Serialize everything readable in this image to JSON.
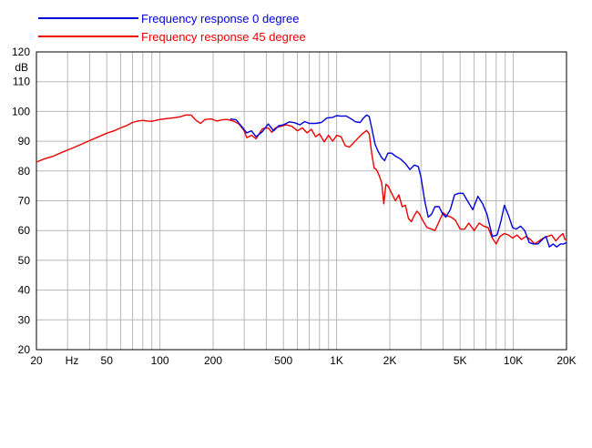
{
  "chart_data": {
    "type": "line",
    "title": "",
    "xlabel": "",
    "ylabel": "dB",
    "x_unit_label": "Hz",
    "xscale": "log",
    "xlim": [
      20,
      20000
    ],
    "ylim": [
      20,
      120
    ],
    "grid": true,
    "legend_position": "top-left",
    "x_tick_labels": [
      {
        "value": 20,
        "label": "20"
      },
      {
        "value": 50,
        "label": "50"
      },
      {
        "value": 100,
        "label": "100"
      },
      {
        "value": 200,
        "label": "200"
      },
      {
        "value": 500,
        "label": "500"
      },
      {
        "value": 1000,
        "label": "1K"
      },
      {
        "value": 2000,
        "label": "2K"
      },
      {
        "value": 5000,
        "label": "5K"
      },
      {
        "value": 10000,
        "label": "10K"
      },
      {
        "value": 20000,
        "label": "20K"
      }
    ],
    "y_ticks": [
      20,
      30,
      40,
      50,
      60,
      70,
      80,
      90,
      100,
      110,
      120
    ],
    "series": [
      {
        "name": "Frequency response 0 degree",
        "color": "#0000dd",
        "points": [
          [
            250,
            97.5
          ],
          [
            270,
            97.2
          ],
          [
            290,
            95
          ],
          [
            310,
            92.8
          ],
          [
            330,
            93.5
          ],
          [
            350,
            91.5
          ],
          [
            380,
            93.2
          ],
          [
            410,
            95.8
          ],
          [
            440,
            93.5
          ],
          [
            470,
            95.2
          ],
          [
            500,
            95.5
          ],
          [
            540,
            96.5
          ],
          [
            580,
            96.2
          ],
          [
            620,
            95.5
          ],
          [
            660,
            96.6
          ],
          [
            700,
            96.0
          ],
          [
            760,
            96.0
          ],
          [
            820,
            96.3
          ],
          [
            880,
            97.8
          ],
          [
            950,
            98.0
          ],
          [
            1000,
            98.6
          ],
          [
            1070,
            98.4
          ],
          [
            1130,
            98.5
          ],
          [
            1200,
            97.6
          ],
          [
            1280,
            96.5
          ],
          [
            1360,
            96.3
          ],
          [
            1420,
            97.8
          ],
          [
            1480,
            98.8
          ],
          [
            1530,
            98.3
          ],
          [
            1580,
            94.5
          ],
          [
            1650,
            89
          ],
          [
            1720,
            86.5
          ],
          [
            1800,
            84.5
          ],
          [
            1870,
            83.5
          ],
          [
            1950,
            86
          ],
          [
            2050,
            86
          ],
          [
            2150,
            85
          ],
          [
            2300,
            84
          ],
          [
            2450,
            82.5
          ],
          [
            2600,
            80.5
          ],
          [
            2750,
            82
          ],
          [
            2900,
            81.5
          ],
          [
            3000,
            78
          ],
          [
            3150,
            70
          ],
          [
            3300,
            64.5
          ],
          [
            3450,
            65.5
          ],
          [
            3600,
            68
          ],
          [
            3800,
            68
          ],
          [
            3950,
            66
          ],
          [
            4150,
            64.5
          ],
          [
            4400,
            67
          ],
          [
            4650,
            72
          ],
          [
            4900,
            72.5
          ],
          [
            5200,
            72.5
          ],
          [
            5500,
            70
          ],
          [
            5900,
            67
          ],
          [
            6300,
            71.5
          ],
          [
            6700,
            69
          ],
          [
            7100,
            65.5
          ],
          [
            7600,
            58
          ],
          [
            8100,
            58.5
          ],
          [
            8500,
            63
          ],
          [
            8900,
            68.5
          ],
          [
            9400,
            65
          ],
          [
            9900,
            61
          ],
          [
            10400,
            60.5
          ],
          [
            11000,
            61.5
          ],
          [
            11600,
            60
          ],
          [
            12300,
            56
          ],
          [
            13000,
            55.5
          ],
          [
            13800,
            55.5
          ],
          [
            14600,
            57
          ],
          [
            15300,
            58
          ],
          [
            16000,
            54.5
          ],
          [
            16800,
            55.5
          ],
          [
            17600,
            54.5
          ],
          [
            18500,
            55.5
          ],
          [
            19300,
            55.5
          ],
          [
            20000,
            56
          ]
        ]
      },
      {
        "name": "Frequency response 45 degree",
        "color": "#ee0000",
        "points": [
          [
            20,
            83
          ],
          [
            22,
            84
          ],
          [
            25,
            85
          ],
          [
            28,
            86.3
          ],
          [
            32,
            87.7
          ],
          [
            36,
            89
          ],
          [
            40,
            90.2
          ],
          [
            45,
            91.5
          ],
          [
            50,
            92.7
          ],
          [
            55,
            93.5
          ],
          [
            60,
            94.5
          ],
          [
            65,
            95.3
          ],
          [
            70,
            96.3
          ],
          [
            75,
            96.8
          ],
          [
            80,
            97.0
          ],
          [
            85,
            96.8
          ],
          [
            90,
            96.7
          ],
          [
            95,
            97.0
          ],
          [
            100,
            97.3
          ],
          [
            110,
            97.6
          ],
          [
            120,
            97.9
          ],
          [
            130,
            98.2
          ],
          [
            140,
            98.8
          ],
          [
            150,
            98.8
          ],
          [
            160,
            97.0
          ],
          [
            170,
            96.0
          ],
          [
            180,
            97.3
          ],
          [
            195,
            97.5
          ],
          [
            210,
            96.8
          ],
          [
            225,
            97.2
          ],
          [
            240,
            97.3
          ],
          [
            260,
            96.8
          ],
          [
            280,
            95.8
          ],
          [
            300,
            93.5
          ],
          [
            310,
            91.2
          ],
          [
            330,
            92.0
          ],
          [
            350,
            90.8
          ],
          [
            380,
            94.2
          ],
          [
            410,
            94.5
          ],
          [
            430,
            93.0
          ],
          [
            450,
            94.5
          ],
          [
            480,
            95.0
          ],
          [
            520,
            95.5
          ],
          [
            560,
            95.0
          ],
          [
            600,
            93.5
          ],
          [
            640,
            94.5
          ],
          [
            680,
            92.8
          ],
          [
            720,
            94.0
          ],
          [
            760,
            91.5
          ],
          [
            800,
            92.5
          ],
          [
            850,
            89.8
          ],
          [
            900,
            92.0
          ],
          [
            950,
            90.0
          ],
          [
            1000,
            92.0
          ],
          [
            1060,
            91.5
          ],
          [
            1120,
            88.5
          ],
          [
            1180,
            88.0
          ],
          [
            1250,
            89.5
          ],
          [
            1320,
            91.0
          ],
          [
            1400,
            92.5
          ],
          [
            1480,
            93.6
          ],
          [
            1530,
            92.5
          ],
          [
            1580,
            86
          ],
          [
            1630,
            81
          ],
          [
            1680,
            80.5
          ],
          [
            1740,
            78.5
          ],
          [
            1800,
            76
          ],
          [
            1850,
            69
          ],
          [
            1900,
            75.5
          ],
          [
            1950,
            75
          ],
          [
            2050,
            72.5
          ],
          [
            2150,
            70
          ],
          [
            2250,
            72
          ],
          [
            2350,
            68
          ],
          [
            2450,
            68.5
          ],
          [
            2550,
            64
          ],
          [
            2650,
            63
          ],
          [
            2750,
            65
          ],
          [
            2850,
            66.5
          ],
          [
            2950,
            65.5
          ],
          [
            3100,
            63
          ],
          [
            3250,
            61
          ],
          [
            3450,
            60.5
          ],
          [
            3600,
            60
          ],
          [
            3800,
            63
          ],
          [
            4000,
            66
          ],
          [
            4200,
            65
          ],
          [
            4450,
            64.5
          ],
          [
            4700,
            63.5
          ],
          [
            5000,
            60.5
          ],
          [
            5300,
            60.5
          ],
          [
            5600,
            62.5
          ],
          [
            6000,
            60
          ],
          [
            6400,
            62.5
          ],
          [
            6800,
            61.5
          ],
          [
            7200,
            61
          ],
          [
            7600,
            57.5
          ],
          [
            8000,
            55.5
          ],
          [
            8400,
            58
          ],
          [
            8900,
            59
          ],
          [
            9400,
            58.5
          ],
          [
            9900,
            57.5
          ],
          [
            10500,
            58.5
          ],
          [
            11100,
            57
          ],
          [
            11800,
            58
          ],
          [
            12500,
            57
          ],
          [
            13200,
            55.5
          ],
          [
            14000,
            56.5
          ],
          [
            14800,
            57.5
          ],
          [
            15600,
            58
          ],
          [
            16500,
            58.5
          ],
          [
            17400,
            56.5
          ],
          [
            18300,
            58
          ],
          [
            19100,
            59
          ],
          [
            19600,
            57
          ],
          [
            20000,
            57
          ]
        ]
      }
    ]
  }
}
